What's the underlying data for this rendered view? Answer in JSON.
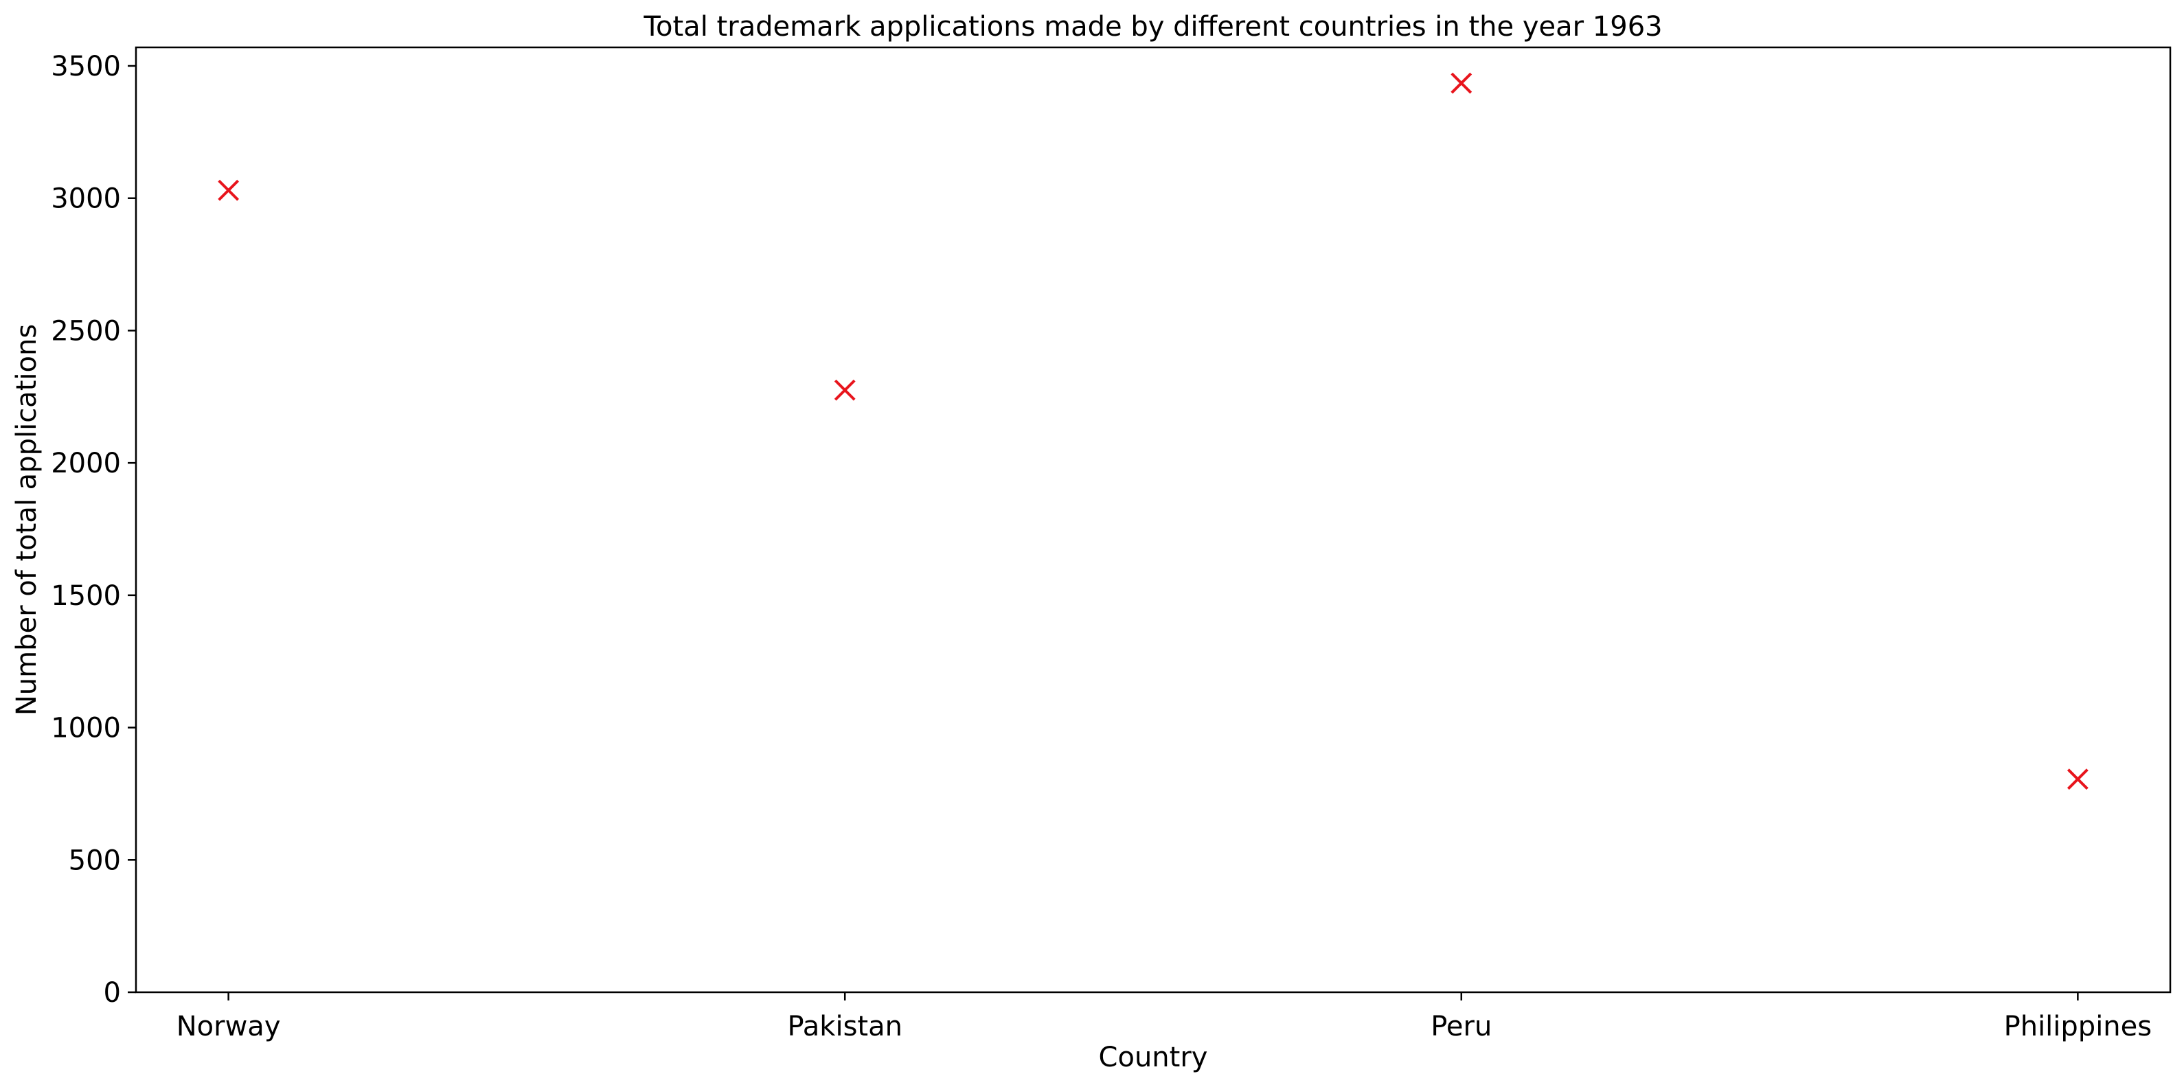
{
  "chart_data": {
    "type": "scatter",
    "title": "Total trademark applications made by different countries in the year 1963",
    "xlabel": "Country",
    "ylabel": "Number of total applications",
    "categories": [
      "Norway",
      "Pakistan",
      "Peru",
      "Philippines"
    ],
    "values": [
      3030,
      2275,
      3435,
      805
    ],
    "ylim": [
      0,
      3570
    ],
    "yticks": [
      0,
      500,
      1000,
      1500,
      2000,
      2500,
      3000,
      3500
    ],
    "grid": false,
    "legend": "none",
    "marker": "x",
    "marker_color": "#e8141c"
  }
}
